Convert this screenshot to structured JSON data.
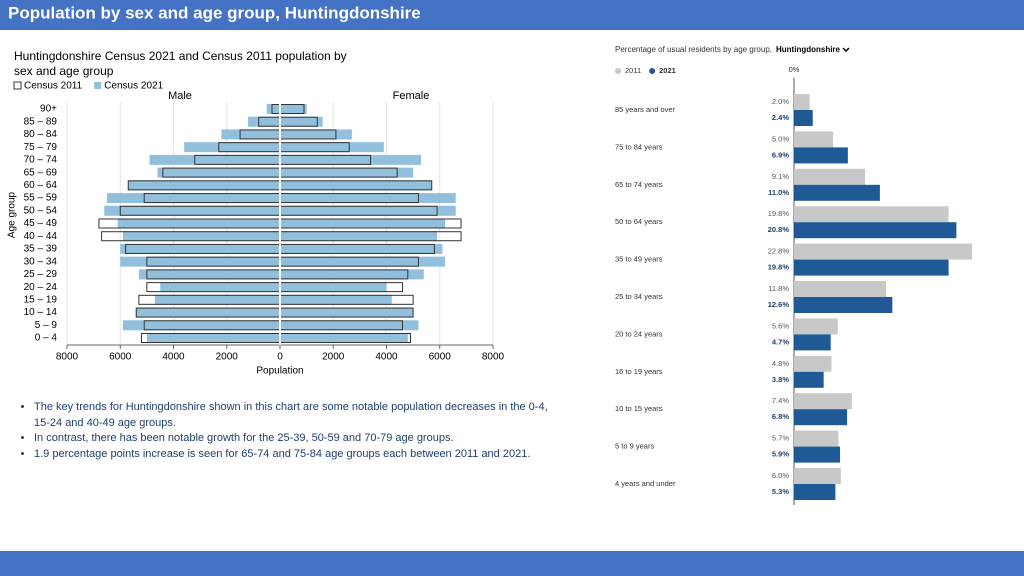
{
  "header": {
    "title": "Population by sex and age group, Huntingdonshire"
  },
  "chart_data": [
    {
      "type": "pyramid",
      "title": "Huntingdonshire Census 2021 and Census 2011 population by sex and age group",
      "left_label": "Male",
      "right_label": "Female",
      "xlabel": "Population",
      "ylabel": "Age group",
      "categories": [
        "0 – 4",
        "5 – 9",
        "10 – 14",
        "15 – 19",
        "20 – 24",
        "25 – 29",
        "30 – 34",
        "35 – 39",
        "40 – 44",
        "45 – 49",
        "50 – 54",
        "55 – 59",
        "60 – 64",
        "65 – 69",
        "70 – 74",
        "75 – 79",
        "80 – 84",
        "85 – 89",
        "90+"
      ],
      "series": [
        {
          "name": "Census 2021",
          "color": "#92c0dc",
          "style": "filled",
          "male": [
            5000,
            5900,
            5400,
            4700,
            4500,
            5300,
            6000,
            6000,
            5900,
            6100,
            6600,
            6500,
            5700,
            4600,
            4900,
            3600,
            2200,
            1200,
            500
          ],
          "female": [
            4800,
            5200,
            5000,
            4200,
            4000,
            5400,
            6200,
            6100,
            5900,
            6200,
            6600,
            6600,
            5700,
            5000,
            5300,
            3900,
            2700,
            1600,
            1000
          ]
        },
        {
          "name": "Census 2011",
          "color": "#333333",
          "style": "outline",
          "male": [
            5200,
            5100,
            5400,
            5300,
            5000,
            5000,
            5000,
            5800,
            6700,
            6800,
            6000,
            5100,
            5700,
            4400,
            3200,
            2300,
            1500,
            800,
            300
          ],
          "female": [
            4900,
            4600,
            5000,
            5000,
            4600,
            4800,
            5200,
            5800,
            6800,
            6800,
            5900,
            5200,
            5700,
            4400,
            3400,
            2600,
            2100,
            1400,
            900
          ]
        }
      ],
      "xlim": [
        -8000,
        8000
      ],
      "xticks": [
        {
          "value": -8000,
          "label": "8000"
        },
        {
          "value": -6000,
          "label": "6000"
        },
        {
          "value": -4000,
          "label": "4000"
        },
        {
          "value": -2000,
          "label": "2000"
        },
        0,
        2000,
        4000,
        6000,
        8000
      ],
      "grid": true
    },
    {
      "type": "hbar",
      "title": "Percentage of usual residents by age group,",
      "selector": "Huntingdonshire",
      "categories": [
        "85 years and over",
        "75 to 84 years",
        "65 to 74 years",
        "50 to 64 years",
        "35 to 49 years",
        "25 to 34 years",
        "20 to 24 years",
        "16 to 19 years",
        "10 to 15 years",
        "5 to 9 years",
        "4 years and under"
      ],
      "series": [
        {
          "name": "2011",
          "color": "#c8c8c8",
          "values": [
            2.0,
            5.0,
            9.1,
            19.8,
            22.8,
            11.8,
            5.6,
            4.8,
            7.4,
            5.7,
            6.0
          ],
          "value_labels": [
            "2.0%",
            "5.0%",
            "9.1%",
            "19.8%",
            "22.8%",
            "11.8%",
            "5.6%",
            "4.8%",
            "7.4%",
            "5.7%",
            "6.0%"
          ]
        },
        {
          "name": "2021",
          "color": "#1f5a96",
          "values": [
            2.4,
            6.9,
            11.0,
            20.8,
            19.8,
            12.6,
            4.7,
            3.8,
            6.8,
            5.9,
            5.3
          ],
          "value_labels": [
            "2.4%",
            "6.9%",
            "11.0%",
            "20.8%",
            "19.8%",
            "12.6%",
            "4.7%",
            "3.8%",
            "6.8%",
            "5.9%",
            "5.3%"
          ]
        }
      ],
      "xlim": [
        0,
        23
      ],
      "xticks": [
        {
          "value": 0,
          "label": "0%"
        }
      ]
    }
  ],
  "bullets": [
    "The key trends for Huntingdonshire shown in this chart are some notable population decreases in the 0-4, 15-24 and 40-49 age groups.",
    "In contrast, there has been notable growth for the 25-39, 50-59 and 70-79 age groups.",
    "1.9 percentage points increase is seen for 65-74 and 75-84 age groups each between 2011 and 2021."
  ]
}
